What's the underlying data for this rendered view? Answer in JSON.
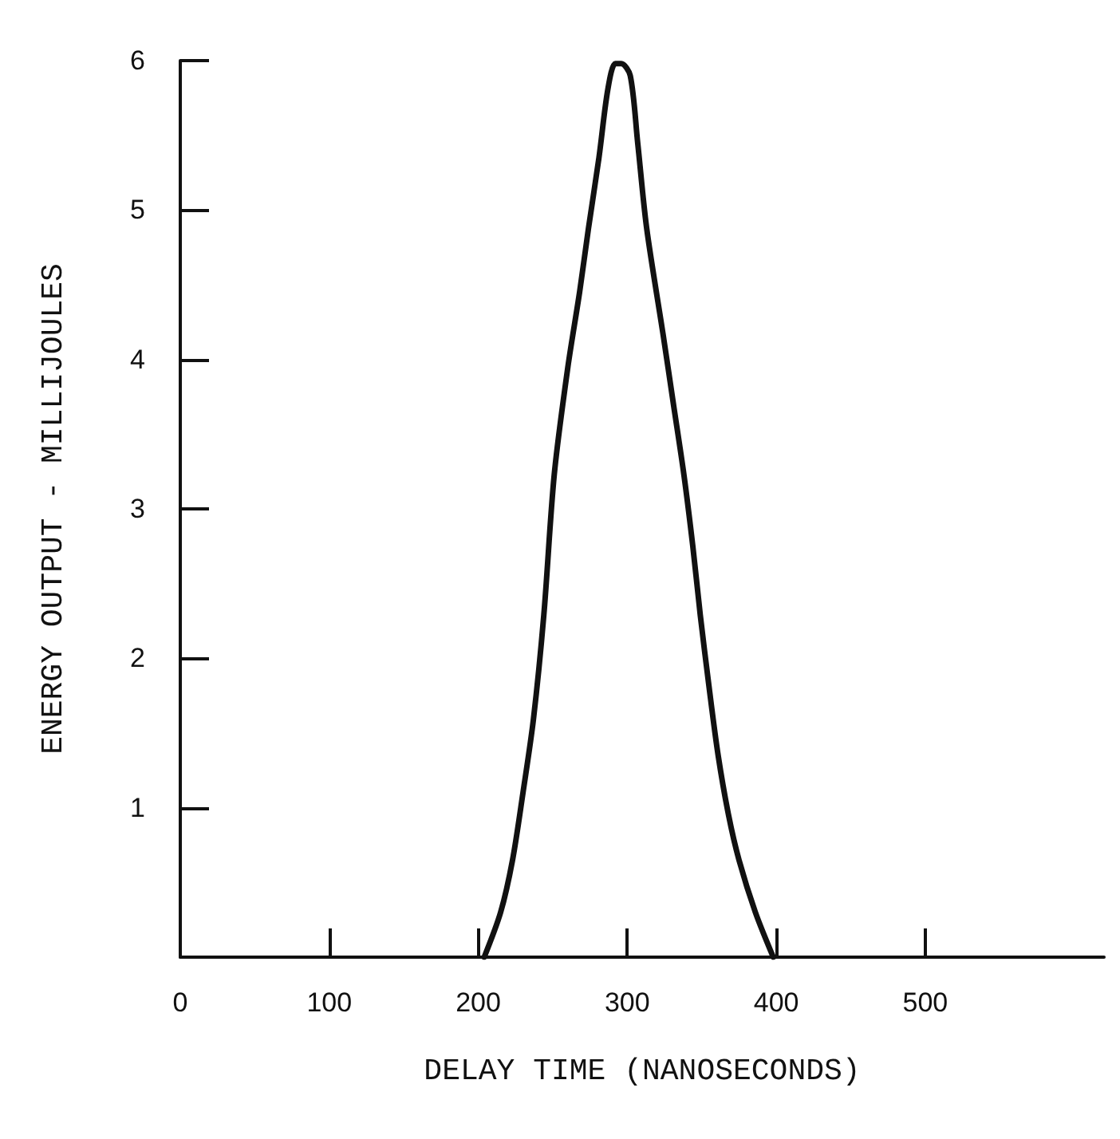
{
  "chart_data": {
    "type": "line",
    "xlabel": "DELAY TIME (NANOSECONDS)",
    "ylabel": "ENERGY OUTPUT - MILLIJOULES",
    "x": [
      204,
      215,
      223,
      230,
      237,
      244,
      251,
      260,
      268,
      274,
      281,
      287,
      292,
      296,
      302,
      307,
      313,
      324,
      331,
      338,
      344,
      349,
      355,
      361,
      368,
      375,
      386,
      398
    ],
    "series": [
      {
        "color": "#111111",
        "values": [
          0,
          0.3,
          0.65,
          1.1,
          1.59,
          2.29,
          3.23,
          3.94,
          4.45,
          4.88,
          5.35,
          5.81,
          5.98,
          5.98,
          5.9,
          5.45,
          4.88,
          4.17,
          3.7,
          3.23,
          2.75,
          2.29,
          1.8,
          1.35,
          0.95,
          0.65,
          0.3,
          0
        ]
      }
    ],
    "xlim": [
      0,
      620
    ],
    "xticks": [
      0,
      100,
      200,
      300,
      400,
      500
    ],
    "ylim": [
      0,
      6
    ],
    "yticks": [
      {
        "value": 0,
        "label": null
      },
      1,
      2,
      3,
      4,
      5,
      6
    ],
    "grid": false,
    "marker": "none",
    "line_style": "solid"
  }
}
